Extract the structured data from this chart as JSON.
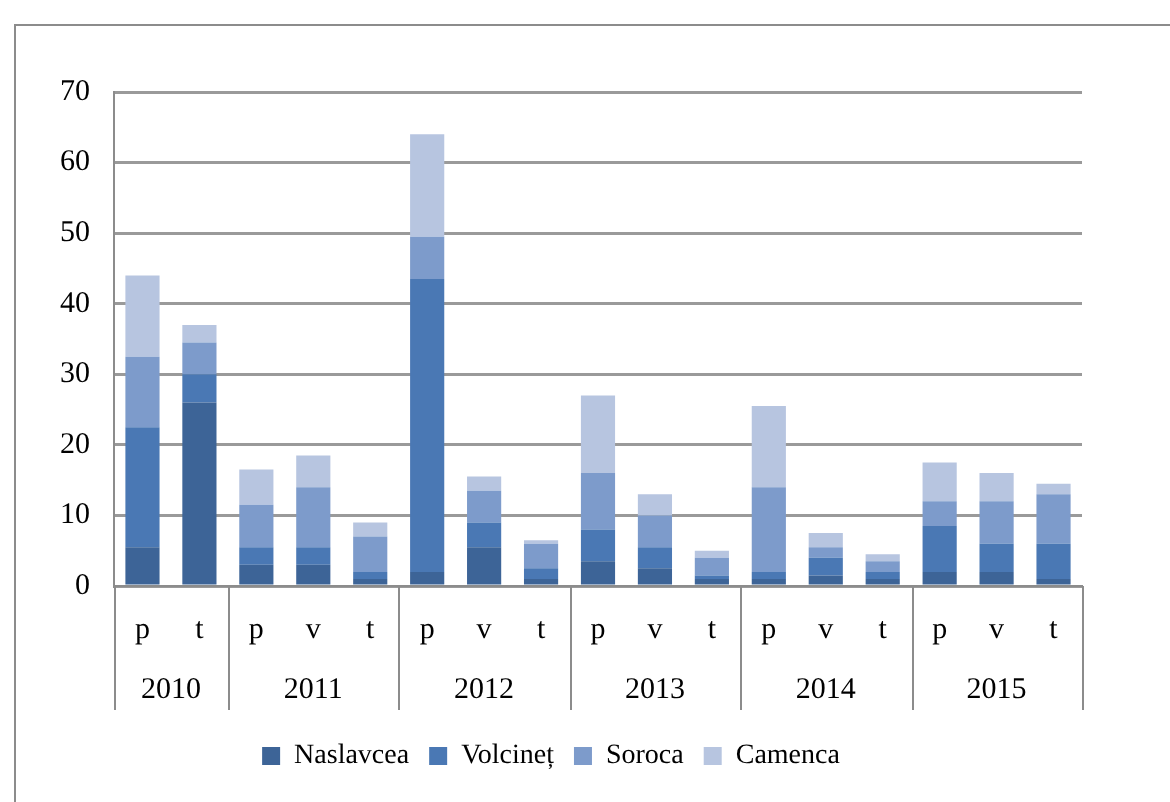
{
  "chart_data": {
    "type": "bar",
    "stacked": true,
    "grid": "y",
    "legend": "bottom",
    "categories": [
      "p",
      "t",
      "p",
      "v",
      "t",
      "p",
      "v",
      "t",
      "p",
      "v",
      "t",
      "p",
      "v",
      "t",
      "p",
      "v",
      "t"
    ],
    "annotations": [
      "2010",
      "2011",
      "2012",
      "2013",
      "2014",
      "2015"
    ],
    "ylim": [
      0,
      70
    ],
    "yticks": [
      0,
      10,
      20,
      30,
      40,
      50,
      60,
      70
    ],
    "series": [
      {
        "name": "Naslavcea",
        "color": "#3d6497",
        "values": [
          5.5,
          26,
          3,
          3,
          1,
          2,
          5.5,
          1,
          3.5,
          2.5,
          1,
          1,
          1.5,
          1,
          2,
          2,
          1
        ]
      },
      {
        "name": "Volcineț",
        "color": "#4a78b4",
        "values": [
          17,
          4,
          2.5,
          2.5,
          1,
          41.5,
          3.5,
          1.5,
          4.5,
          3,
          0.5,
          1,
          2.5,
          1,
          6.5,
          4,
          5
        ]
      },
      {
        "name": "Soroca",
        "color": "#7d9bcb",
        "values": [
          10,
          4.5,
          6,
          8.5,
          5,
          6,
          4.5,
          3.5,
          8,
          4.5,
          2.5,
          12,
          1.5,
          1.5,
          3.5,
          6,
          7
        ]
      },
      {
        "name": "Camenca",
        "color": "#b7c5e0",
        "values": [
          11.5,
          2.5,
          5,
          4.5,
          2,
          14.5,
          2,
          0.5,
          11,
          3,
          1,
          11.5,
          2,
          1,
          5.5,
          4,
          1.5
        ]
      }
    ]
  }
}
